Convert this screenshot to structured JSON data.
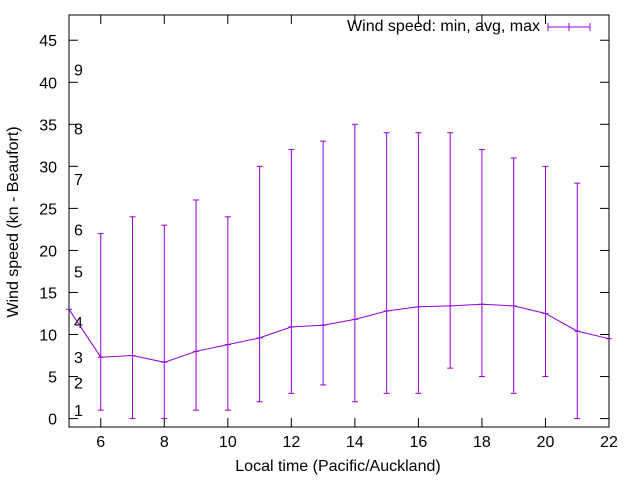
{
  "chart_data": {
    "type": "line",
    "subtype": "errorbar",
    "title": "",
    "xlabel": "Local time (Pacific/Auckland)",
    "ylabel": "Wind speed (kn - Beaufort)",
    "xlim": [
      5,
      22
    ],
    "ylim": [
      -1,
      48
    ],
    "x_ticks": [
      6,
      8,
      10,
      12,
      14,
      16,
      18,
      20,
      22
    ],
    "y_ticks": [
      0,
      5,
      10,
      15,
      20,
      25,
      30,
      35,
      40,
      45
    ],
    "grid": false,
    "legend": {
      "position": "top-right",
      "label": "Wind speed: min, avg, max"
    },
    "beaufort_labels": [
      {
        "label": "1",
        "value": 1
      },
      {
        "label": "2",
        "value": 4.3
      },
      {
        "label": "3",
        "value": 7.3
      },
      {
        "label": "4",
        "value": 11.5
      },
      {
        "label": "5",
        "value": 17.5
      },
      {
        "label": "6",
        "value": 22.5
      },
      {
        "label": "7",
        "value": 28.5
      },
      {
        "label": "8",
        "value": 34.5
      },
      {
        "label": "9",
        "value": 41.5
      }
    ],
    "series": [
      {
        "name": "Wind speed: min, avg, max",
        "color": "#9400d3",
        "x": [
          5,
          6,
          7,
          8,
          9,
          10,
          11,
          12,
          13,
          14,
          15,
          16,
          17,
          18,
          19,
          20,
          21,
          22
        ],
        "avg": [
          13,
          7.3,
          7.5,
          6.7,
          8,
          8.8,
          9.6,
          10.9,
          11.1,
          11.8,
          12.8,
          13.3,
          13.4,
          13.6,
          13.4,
          12.5,
          10.4,
          9.5
        ],
        "min": [
          null,
          1,
          0,
          0,
          1,
          1,
          2,
          3,
          4,
          2,
          3,
          3,
          6,
          5,
          3,
          5,
          0,
          null
        ],
        "max": [
          null,
          22,
          24,
          23,
          26,
          24,
          30,
          32,
          33,
          35,
          34,
          34,
          34,
          32,
          31,
          30,
          28,
          null
        ]
      }
    ]
  }
}
